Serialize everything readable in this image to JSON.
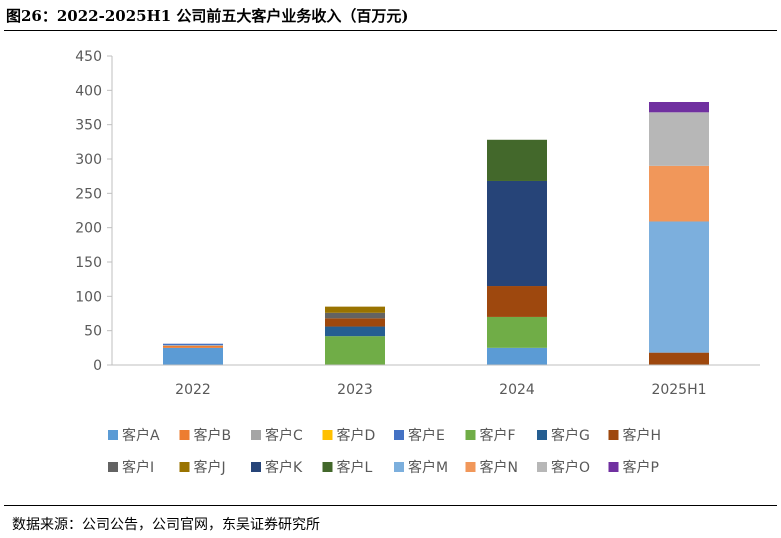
{
  "header": {
    "title": "图26：2022-2025H1 公司前五大客户业务收入（百万元)"
  },
  "footer": {
    "source": "数据来源：公司公告，公司官网，东吴证券研究所"
  },
  "chart_data": {
    "type": "bar",
    "stacked": true,
    "categories": [
      "2022",
      "2023",
      "2024",
      "2025H1"
    ],
    "ylim": [
      0,
      450
    ],
    "yticks": [
      0,
      50,
      100,
      150,
      200,
      250,
      300,
      350,
      400,
      450
    ],
    "grid": false,
    "legend_position": "bottom",
    "series": [
      {
        "name": "客户A",
        "color": "#5B9BD5",
        "values": [
          25,
          0,
          25,
          0
        ]
      },
      {
        "name": "客户B",
        "color": "#ED7D31",
        "values": [
          3,
          0,
          0,
          0
        ]
      },
      {
        "name": "客户C",
        "color": "#A5A5A5",
        "values": [
          1,
          0,
          0,
          0
        ]
      },
      {
        "name": "客户D",
        "color": "#FFC000",
        "values": [
          0,
          0,
          0,
          0
        ]
      },
      {
        "name": "客户E",
        "color": "#4472C4",
        "values": [
          2,
          0,
          0,
          0
        ]
      },
      {
        "name": "客户F",
        "color": "#70AD47",
        "values": [
          0,
          42,
          45,
          0
        ]
      },
      {
        "name": "客户G",
        "color": "#255E91",
        "values": [
          0,
          14,
          0,
          0
        ]
      },
      {
        "name": "客户H",
        "color": "#9E480E",
        "values": [
          0,
          12,
          45,
          18
        ]
      },
      {
        "name": "客户I",
        "color": "#636363",
        "values": [
          0,
          8,
          0,
          0
        ]
      },
      {
        "name": "客户J",
        "color": "#997300",
        "values": [
          0,
          9,
          0,
          0
        ]
      },
      {
        "name": "客户K",
        "color": "#264478",
        "values": [
          0,
          0,
          153,
          0
        ]
      },
      {
        "name": "客户L",
        "color": "#43682B",
        "values": [
          0,
          0,
          60,
          0
        ]
      },
      {
        "name": "客户M",
        "color": "#7CAFDD",
        "values": [
          0,
          0,
          0,
          191
        ]
      },
      {
        "name": "客户N",
        "color": "#F1975A",
        "values": [
          0,
          0,
          0,
          81
        ]
      },
      {
        "name": "客户O",
        "color": "#B7B7B7",
        "values": [
          0,
          0,
          0,
          78
        ]
      },
      {
        "name": "客户P",
        "color": "#7030A0",
        "values": [
          0,
          0,
          0,
          15
        ]
      }
    ]
  }
}
